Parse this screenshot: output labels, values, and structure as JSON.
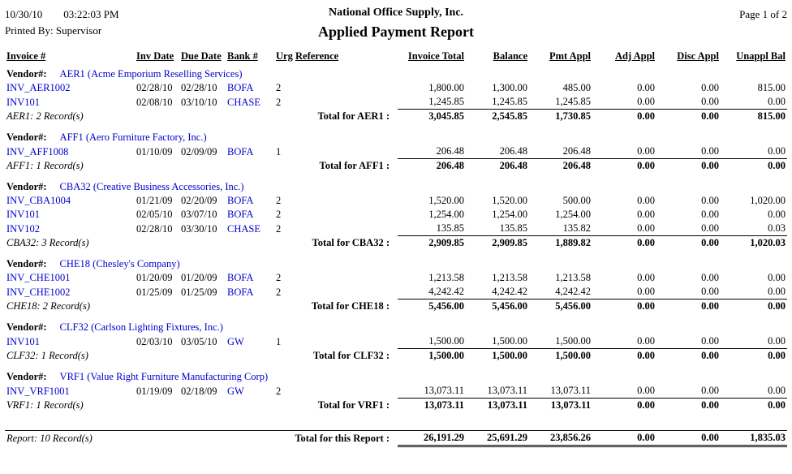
{
  "header": {
    "date": "10/30/10",
    "time": "03:22:03 PM",
    "printed_by": "Printed By: Supervisor",
    "company": "National Office Supply, Inc.",
    "title": "Applied Payment Report",
    "page": "Page 1 of 2"
  },
  "labels": {
    "vendor_prefix": "Vendor#:"
  },
  "columns": [
    "Invoice #",
    "Inv Date",
    "Due Date",
    "Bank #",
    "Urg",
    "Reference",
    "Invoice Total",
    "Balance",
    "Pmt Appl",
    "Adj Appl",
    "Disc Appl",
    "Unappl Bal"
  ],
  "vendors": [
    {
      "label": "AER1 (Acme Emporium Reselling Services)",
      "rows": [
        {
          "invoice": "INV_AER1002",
          "inv_date": "02/28/10",
          "due_date": "02/28/10",
          "bank": "BOFA",
          "urg": "2",
          "reference": "",
          "amounts": [
            "1,800.00",
            "1,300.00",
            "485.00",
            "0.00",
            "0.00",
            "815.00"
          ]
        },
        {
          "invoice": "INV101",
          "inv_date": "02/08/10",
          "due_date": "03/10/10",
          "bank": "CHASE",
          "urg": "2",
          "reference": "",
          "amounts": [
            "1,245.85",
            "1,245.85",
            "1,245.85",
            "0.00",
            "0.00",
            "0.00"
          ]
        }
      ],
      "record_count": "AER1: 2 Record(s)",
      "total_label": "Total for AER1 :",
      "totals": [
        "3,045.85",
        "2,545.85",
        "1,730.85",
        "0.00",
        "0.00",
        "815.00"
      ]
    },
    {
      "label": "AFF1 (Aero Furniture Factory, Inc.)",
      "rows": [
        {
          "invoice": "INV_AFF1008",
          "inv_date": "01/10/09",
          "due_date": "02/09/09",
          "bank": "BOFA",
          "urg": "1",
          "reference": "",
          "amounts": [
            "206.48",
            "206.48",
            "206.48",
            "0.00",
            "0.00",
            "0.00"
          ]
        }
      ],
      "record_count": "AFF1: 1 Record(s)",
      "total_label": "Total for AFF1 :",
      "totals": [
        "206.48",
        "206.48",
        "206.48",
        "0.00",
        "0.00",
        "0.00"
      ]
    },
    {
      "label": "CBA32 (Creative Business Accessories, Inc.)",
      "rows": [
        {
          "invoice": "INV_CBA1004",
          "inv_date": "01/21/09",
          "due_date": "02/20/09",
          "bank": "BOFA",
          "urg": "2",
          "reference": "",
          "amounts": [
            "1,520.00",
            "1,520.00",
            "500.00",
            "0.00",
            "0.00",
            "1,020.00"
          ]
        },
        {
          "invoice": "INV101",
          "inv_date": "02/05/10",
          "due_date": "03/07/10",
          "bank": "BOFA",
          "urg": "2",
          "reference": "",
          "amounts": [
            "1,254.00",
            "1,254.00",
            "1,254.00",
            "0.00",
            "0.00",
            "0.00"
          ]
        },
        {
          "invoice": "INV102",
          "inv_date": "02/28/10",
          "due_date": "03/30/10",
          "bank": "CHASE",
          "urg": "2",
          "reference": "",
          "amounts": [
            "135.85",
            "135.85",
            "135.82",
            "0.00",
            "0.00",
            "0.03"
          ]
        }
      ],
      "record_count": "CBA32: 3 Record(s)",
      "total_label": "Total for CBA32 :",
      "totals": [
        "2,909.85",
        "2,909.85",
        "1,889.82",
        "0.00",
        "0.00",
        "1,020.03"
      ]
    },
    {
      "label": "CHE18 (Chesley's Company)",
      "rows": [
        {
          "invoice": "INV_CHE1001",
          "inv_date": "01/20/09",
          "due_date": "01/20/09",
          "bank": "BOFA",
          "urg": "2",
          "reference": "",
          "amounts": [
            "1,213.58",
            "1,213.58",
            "1,213.58",
            "0.00",
            "0.00",
            "0.00"
          ]
        },
        {
          "invoice": "INV_CHE1002",
          "inv_date": "01/25/09",
          "due_date": "01/25/09",
          "bank": "BOFA",
          "urg": "2",
          "reference": "",
          "amounts": [
            "4,242.42",
            "4,242.42",
            "4,242.42",
            "0.00",
            "0.00",
            "0.00"
          ]
        }
      ],
      "record_count": "CHE18: 2 Record(s)",
      "total_label": "Total for CHE18 :",
      "totals": [
        "5,456.00",
        "5,456.00",
        "5,456.00",
        "0.00",
        "0.00",
        "0.00"
      ]
    },
    {
      "label": "CLF32 (Carlson Lighting Fixtures, Inc.)",
      "rows": [
        {
          "invoice": "INV101",
          "inv_date": "02/03/10",
          "due_date": "03/05/10",
          "bank": "GW",
          "urg": "1",
          "reference": "",
          "amounts": [
            "1,500.00",
            "1,500.00",
            "1,500.00",
            "0.00",
            "0.00",
            "0.00"
          ]
        }
      ],
      "record_count": "CLF32: 1 Record(s)",
      "total_label": "Total for CLF32 :",
      "totals": [
        "1,500.00",
        "1,500.00",
        "1,500.00",
        "0.00",
        "0.00",
        "0.00"
      ]
    },
    {
      "label": "VRF1 (Value Right Furniture Manufacturing Corp)",
      "rows": [
        {
          "invoice": "INV_VRF1001",
          "inv_date": "01/19/09",
          "due_date": "02/18/09",
          "bank": "GW",
          "urg": "2",
          "reference": "",
          "amounts": [
            "13,073.11",
            "13,073.11",
            "13,073.11",
            "0.00",
            "0.00",
            "0.00"
          ]
        }
      ],
      "record_count": "VRF1: 1 Record(s)",
      "total_label": "Total for VRF1 :",
      "totals": [
        "13,073.11",
        "13,073.11",
        "13,073.11",
        "0.00",
        "0.00",
        "0.00"
      ]
    }
  ],
  "report_total": {
    "record_count": "Report: 10 Record(s)",
    "label": "Total for this Report :",
    "totals": [
      "26,191.29",
      "25,691.29",
      "23,856.26",
      "0.00",
      "0.00",
      "1,835.03"
    ]
  },
  "colors": {
    "link_blue": "#0000cc"
  }
}
